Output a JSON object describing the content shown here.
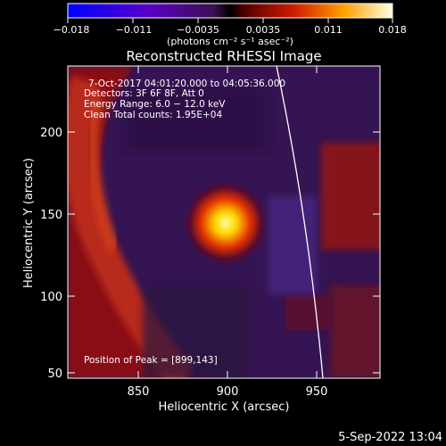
{
  "colorbar": {
    "ticks": [
      "−0.018",
      "−0.011",
      "−0.0035",
      "0.0035",
      "0.011",
      "0.018"
    ],
    "units": "(photons cm⁻² s⁻¹ asec⁻²)"
  },
  "plot": {
    "title": "Reconstructed RHESSI Image",
    "xlabel": "Heliocentric X (arcsec)",
    "ylabel": "Heliocentric Y (arcsec)",
    "xticks": [
      "850",
      "900",
      "950"
    ],
    "yticks": [
      "200",
      "150",
      "100",
      "50"
    ]
  },
  "info": {
    "line1": "7-Oct-2017 04:01:20.000 to 04:05:36.000",
    "line2": "Detectors: 3F 6F 8F, Att 0",
    "line3": "Energy Range: 6.0 − 12.0 keV",
    "line4": "Clean    Total counts: 1.95E+04",
    "peak": "Position of Peak = [899,143]"
  },
  "footer": {
    "timestamp": "5-Sep-2022 13:04"
  },
  "colors": {
    "background": "#000000",
    "limb": "#ffffff",
    "peak": "#ffff66"
  }
}
